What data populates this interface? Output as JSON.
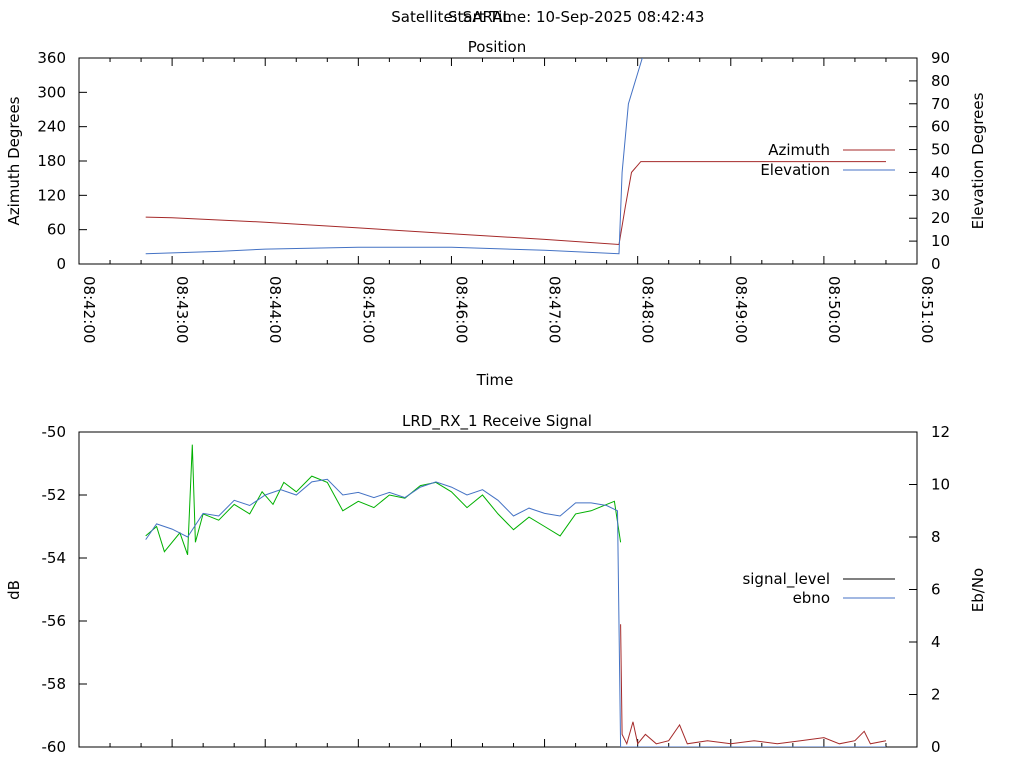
{
  "header": {
    "satellite": "Satellite: SARAL",
    "start_time": "Start Time: 10-Sep-2025 08:42:43"
  },
  "chart_data": [
    {
      "type": "line",
      "title": "Position",
      "xlabel": "Time",
      "ylabel": "Azimuth Degrees",
      "y2label": "Elevation Degrees",
      "xlim": [
        "08:42:00",
        "08:51:00"
      ],
      "ylim": [
        0,
        360
      ],
      "y2lim": [
        0,
        90
      ],
      "x_ticks": [
        "08:42:00",
        "08:43:00",
        "08:44:00",
        "08:45:00",
        "08:46:00",
        "08:47:00",
        "08:48:00",
        "08:49:00",
        "08:50:00",
        "08:51:00"
      ],
      "y_ticks": [
        "0",
        "60",
        "120",
        "180",
        "240",
        "300",
        "360"
      ],
      "y2_ticks": [
        "0",
        "10",
        "20",
        "30",
        "40",
        "50",
        "60",
        "70",
        "80",
        "90"
      ],
      "legend_position": "right",
      "grid": false,
      "series": [
        {
          "name": "Azimuth",
          "axis": "left",
          "color": "#a52a2a",
          "points": [
            [
              "08:42:43",
              82
            ],
            [
              "08:43:00",
              81
            ],
            [
              "08:44:00",
              73
            ],
            [
              "08:45:00",
              63
            ],
            [
              "08:46:00",
              53
            ],
            [
              "08:47:00",
              43
            ],
            [
              "08:47:48",
              34
            ],
            [
              "08:47:52",
              100
            ],
            [
              "08:47:56",
              160
            ],
            [
              "08:48:02",
              179
            ],
            [
              "08:50:40",
              179
            ]
          ]
        },
        {
          "name": "Elevation",
          "axis": "right",
          "color": "#4472c4",
          "points": [
            [
              "08:42:43",
              4.5
            ],
            [
              "08:43:30",
              5.5
            ],
            [
              "08:44:00",
              6.5
            ],
            [
              "08:45:00",
              7.3
            ],
            [
              "08:46:00",
              7.3
            ],
            [
              "08:47:00",
              6.0
            ],
            [
              "08:47:48",
              4.5
            ],
            [
              "08:47:50",
              40
            ],
            [
              "08:47:54",
              70
            ],
            [
              "08:48:03",
              90
            ]
          ]
        }
      ]
    },
    {
      "type": "line",
      "title": "LRD_RX_1 Receive Signal",
      "xlabel": "",
      "ylabel": "dB",
      "y2label": "Eb/No",
      "xlim": [
        "08:42:00",
        "08:51:00"
      ],
      "ylim": [
        -60,
        -50
      ],
      "y2lim": [
        0,
        12
      ],
      "y_ticks": [
        "-60",
        "-58",
        "-56",
        "-54",
        "-52",
        "-50"
      ],
      "y2_ticks": [
        "0",
        "2",
        "4",
        "6",
        "8",
        "10",
        "12"
      ],
      "legend_position": "right",
      "grid": false,
      "series": [
        {
          "name": "signal_level",
          "axis": "left",
          "color": "#00b000",
          "points": [
            [
              "08:42:43",
              -53.3
            ],
            [
              "08:42:50",
              -53.0
            ],
            [
              "08:42:55",
              -53.8
            ],
            [
              "08:43:05",
              -53.2
            ],
            [
              "08:43:10",
              -53.9
            ],
            [
              "08:43:13",
              -50.4
            ],
            [
              "08:43:15",
              -53.5
            ],
            [
              "08:43:20",
              -52.6
            ],
            [
              "08:43:30",
              -52.8
            ],
            [
              "08:43:40",
              -52.3
            ],
            [
              "08:43:50",
              -52.6
            ],
            [
              "08:43:58",
              -51.9
            ],
            [
              "08:44:05",
              -52.3
            ],
            [
              "08:44:12",
              -51.6
            ],
            [
              "08:44:20",
              -51.9
            ],
            [
              "08:44:30",
              -51.4
            ],
            [
              "08:44:40",
              -51.6
            ],
            [
              "08:44:50",
              -52.5
            ],
            [
              "08:45:00",
              -52.2
            ],
            [
              "08:45:10",
              -52.4
            ],
            [
              "08:45:20",
              -52.0
            ],
            [
              "08:45:30",
              -52.1
            ],
            [
              "08:45:40",
              -51.7
            ],
            [
              "08:45:50",
              -51.6
            ],
            [
              "08:46:00",
              -51.9
            ],
            [
              "08:46:10",
              -52.4
            ],
            [
              "08:46:20",
              -52.0
            ],
            [
              "08:46:30",
              -52.6
            ],
            [
              "08:46:40",
              -53.1
            ],
            [
              "08:46:50",
              -52.7
            ],
            [
              "08:47:00",
              -53.0
            ],
            [
              "08:47:10",
              -53.3
            ],
            [
              "08:47:20",
              -52.6
            ],
            [
              "08:47:30",
              -52.5
            ],
            [
              "08:47:40",
              -52.3
            ],
            [
              "08:47:45",
              -52.2
            ],
            [
              "08:47:49",
              -53.5
            ]
          ]
        },
        {
          "name": "ebno",
          "axis": "right",
          "color": "#4472c4",
          "points": [
            [
              "08:42:43",
              7.9
            ],
            [
              "08:42:50",
              8.5
            ],
            [
              "08:43:00",
              8.3
            ],
            [
              "08:43:10",
              8.0
            ],
            [
              "08:43:20",
              8.9
            ],
            [
              "08:43:30",
              8.8
            ],
            [
              "08:43:40",
              9.4
            ],
            [
              "08:43:50",
              9.2
            ],
            [
              "08:44:00",
              9.6
            ],
            [
              "08:44:10",
              9.8
            ],
            [
              "08:44:20",
              9.6
            ],
            [
              "08:44:30",
              10.1
            ],
            [
              "08:44:40",
              10.2
            ],
            [
              "08:44:50",
              9.6
            ],
            [
              "08:45:00",
              9.7
            ],
            [
              "08:45:10",
              9.5
            ],
            [
              "08:45:20",
              9.7
            ],
            [
              "08:45:30",
              9.5
            ],
            [
              "08:45:40",
              9.9
            ],
            [
              "08:45:50",
              10.1
            ],
            [
              "08:46:00",
              9.9
            ],
            [
              "08:46:10",
              9.6
            ],
            [
              "08:46:20",
              9.8
            ],
            [
              "08:46:30",
              9.4
            ],
            [
              "08:46:40",
              8.8
            ],
            [
              "08:46:50",
              9.1
            ],
            [
              "08:47:00",
              8.9
            ],
            [
              "08:47:10",
              8.8
            ],
            [
              "08:47:20",
              9.3
            ],
            [
              "08:47:30",
              9.3
            ],
            [
              "08:47:40",
              9.2
            ],
            [
              "08:47:47",
              9.0
            ],
            [
              "08:47:49",
              0.0
            ],
            [
              "08:50:40",
              0.0
            ]
          ]
        },
        {
          "name": "",
          "axis": "left",
          "color": "#a52a2a",
          "points": [
            [
              "08:47:49",
              -56.1
            ],
            [
              "08:47:50",
              -59.6
            ],
            [
              "08:47:53",
              -59.9
            ],
            [
              "08:47:57",
              -59.2
            ],
            [
              "08:48:00",
              -59.9
            ],
            [
              "08:48:05",
              -59.6
            ],
            [
              "08:48:12",
              -59.9
            ],
            [
              "08:48:20",
              -59.8
            ],
            [
              "08:48:27",
              -59.3
            ],
            [
              "08:48:32",
              -59.9
            ],
            [
              "08:48:45",
              -59.8
            ],
            [
              "08:49:00",
              -59.9
            ],
            [
              "08:49:15",
              -59.8
            ],
            [
              "08:49:30",
              -59.9
            ],
            [
              "08:49:45",
              -59.8
            ],
            [
              "08:50:00",
              -59.7
            ],
            [
              "08:50:10",
              -59.9
            ],
            [
              "08:50:20",
              -59.8
            ],
            [
              "08:50:26",
              -59.5
            ],
            [
              "08:50:30",
              -59.9
            ],
            [
              "08:50:40",
              -59.8
            ]
          ]
        }
      ]
    }
  ]
}
